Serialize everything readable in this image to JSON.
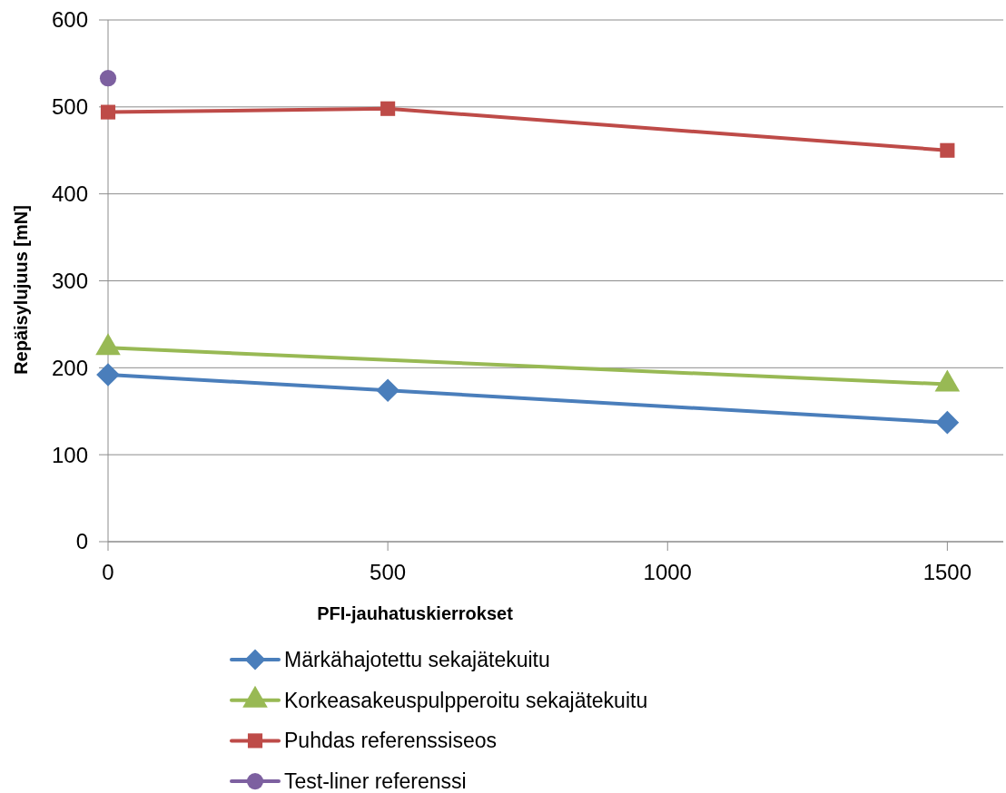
{
  "chart_data": {
    "type": "line",
    "xlabel": "PFI-jauhatuskierrokset",
    "ylabel": "Repäisylujuus [mN]",
    "xlim": [
      0,
      1600
    ],
    "xticks": [
      0,
      500,
      1000,
      1500
    ],
    "ylim": [
      0,
      600
    ],
    "yticks": [
      0,
      100,
      200,
      300,
      400,
      500,
      600
    ],
    "grid": "y",
    "legend": "bottom",
    "series": [
      {
        "name": "Märkähajotettu sekajätekuitu",
        "color": "#4a7ebb",
        "marker": "diamond",
        "x": [
          0,
          500,
          1500
        ],
        "values": [
          192,
          174,
          137
        ]
      },
      {
        "name": "Korkeasakeuspulpperoitu sekajätekuitu",
        "color": "#98b954",
        "marker": "triangle",
        "x": [
          0,
          1500
        ],
        "values": [
          223,
          181
        ]
      },
      {
        "name": "Puhdas referenssiseos",
        "color": "#be4b48",
        "marker": "square",
        "x": [
          0,
          500,
          1500
        ],
        "values": [
          494,
          498,
          450
        ]
      },
      {
        "name": "Test-liner referenssi",
        "color": "#7d60a0",
        "marker": "circle",
        "x": [
          0
        ],
        "values": [
          533
        ]
      }
    ]
  }
}
